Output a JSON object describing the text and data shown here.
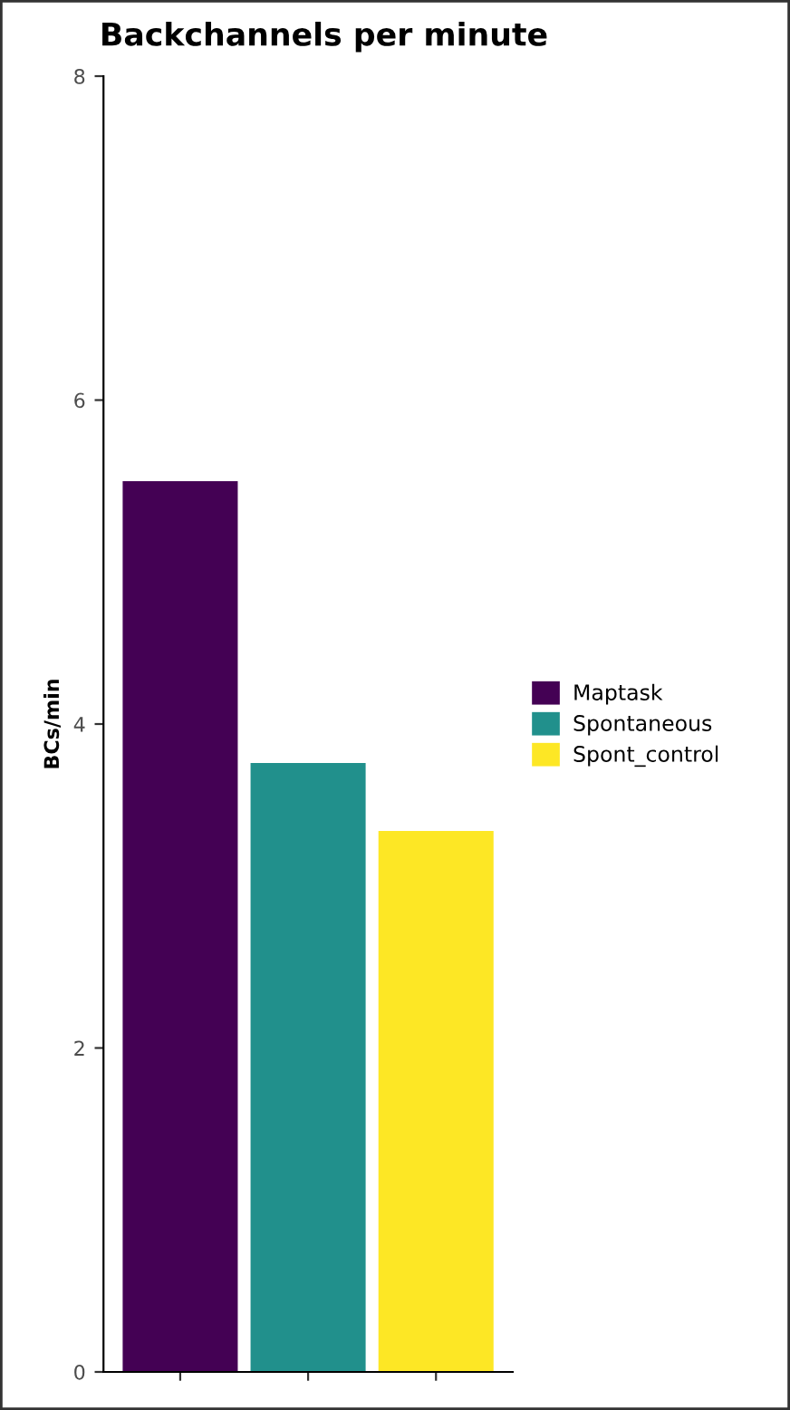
{
  "chart_data": {
    "type": "bar",
    "title": "Backchannels per minute",
    "ylabel": "BCs/min",
    "categories": [
      null,
      null,
      null
    ],
    "series": [
      {
        "name": "Maptask",
        "color": "#440154",
        "values": [
          5.5,
          null,
          null
        ]
      },
      {
        "name": "Spontaneous",
        "color": "#21908c",
        "values": [
          null,
          3.76,
          null
        ]
      },
      {
        "name": "Spont_control",
        "color": "#fde725",
        "values": [
          null,
          null,
          3.34
        ]
      }
    ],
    "ylim": [
      0,
      8
    ],
    "yticks": [
      0,
      2,
      4,
      6,
      8
    ],
    "grid": false,
    "legend": "right"
  }
}
